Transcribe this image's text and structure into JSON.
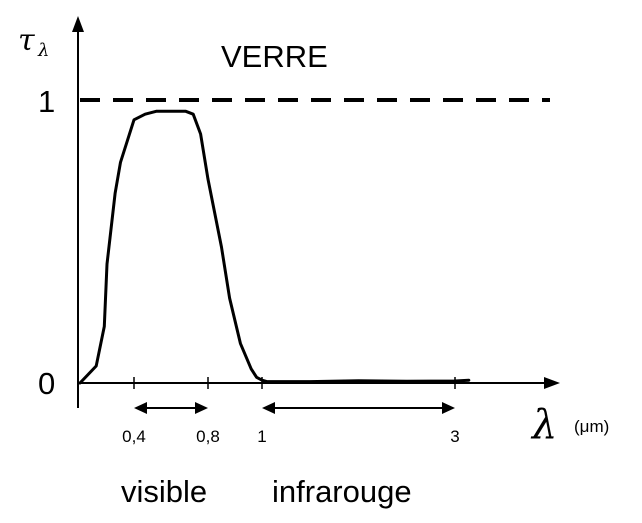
{
  "chart_data": {
    "type": "line",
    "title": "VERRE",
    "ylabel": "τ",
    "ylabel_sub": "λ",
    "xlabel": "λ",
    "xunit": "(μm)",
    "ylim": [
      0,
      1
    ],
    "y_ticks": [
      {
        "value": 0,
        "label": "0"
      },
      {
        "value": 1,
        "label": "1"
      }
    ],
    "x_ticks": [
      {
        "value": 0.4,
        "label": "0,4"
      },
      {
        "value": 0.8,
        "label": "0,8"
      },
      {
        "value": 1,
        "label": "1"
      },
      {
        "value": 3,
        "label": "3"
      }
    ],
    "reference_line": {
      "y": 1,
      "style": "dashed"
    },
    "ranges": [
      {
        "label": "visible",
        "from": 0.4,
        "to": 0.8
      },
      {
        "label": "infrarouge",
        "from": 1,
        "to": 3
      }
    ],
    "series": [
      {
        "x": [
          0.0,
          0.12,
          0.18,
          0.2,
          0.26,
          0.3,
          0.34,
          0.4,
          0.46,
          0.52,
          0.6,
          0.68,
          0.72,
          0.76,
          0.8,
          0.85,
          0.88,
          0.92,
          0.96,
          0.98,
          1.0,
          1.05,
          1.5,
          2.0,
          2.5,
          3.0,
          3.12
        ],
        "y": [
          0.0,
          0.06,
          0.2,
          0.42,
          0.67,
          0.78,
          0.84,
          0.93,
          0.95,
          0.96,
          0.96,
          0.96,
          0.95,
          0.88,
          0.72,
          0.48,
          0.3,
          0.14,
          0.05,
          0.02,
          0.01,
          0.005,
          0.005,
          0.008,
          0.006,
          0.007,
          0.01
        ]
      }
    ]
  }
}
